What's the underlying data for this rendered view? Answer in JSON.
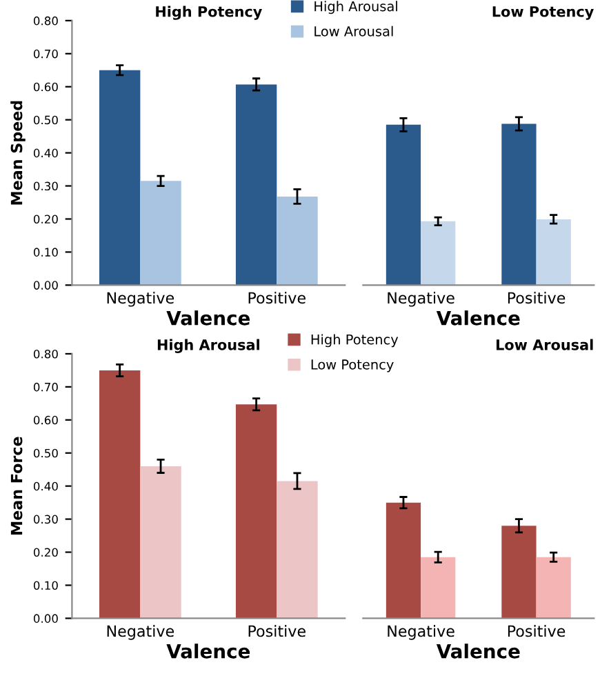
{
  "chart_data": [
    {
      "type": "bar",
      "title": "High Potency",
      "xlabel": "Valence",
      "ylabel": "Mean Speed",
      "categories": [
        "Negative",
        "Positive"
      ],
      "ylim": [
        0,
        0.8
      ],
      "yticks": [
        {
          "value": 0,
          "label": "0.00"
        },
        {
          "value": 0.1,
          "label": "0.10"
        },
        {
          "value": 0.2,
          "label": "0.20"
        },
        {
          "value": 0.3,
          "label": "0.30"
        },
        {
          "value": 0.4,
          "label": "0.40"
        },
        {
          "value": 0.5,
          "label": "0.50"
        },
        {
          "value": 0.6,
          "label": "0.60"
        },
        {
          "value": 0.7,
          "label": "0.70"
        },
        {
          "value": 0.8,
          "label": "0.80"
        }
      ],
      "legend": "top right",
      "grid": false,
      "series": [
        {
          "name": "High Arousal",
          "color": "#2a5b8c",
          "values": [
            0.65,
            0.607
          ],
          "errors": [
            0.015,
            0.018
          ]
        },
        {
          "name": "Low Arousal",
          "color": "#a8c4e0",
          "values": [
            0.315,
            0.268
          ],
          "errors": [
            0.015,
            0.022
          ]
        }
      ]
    },
    {
      "type": "bar",
      "title": "Low Potency",
      "xlabel": "Valence",
      "categories": [
        "Negative",
        "Positive"
      ],
      "ylim": [
        0,
        0.8
      ],
      "tick_labels": "x",
      "grid": false,
      "series": [
        {
          "color": "#2a5b8c",
          "values": [
            0.485,
            0.488
          ],
          "errors": [
            0.02,
            0.02
          ]
        },
        {
          "color": "#c5d7ea",
          "values": [
            0.193,
            0.199
          ],
          "errors": [
            0.012,
            0.013
          ]
        }
      ]
    },
    {
      "type": "bar",
      "title": "High Arousal",
      "xlabel": "Valence",
      "ylabel": "Mean Force",
      "categories": [
        "Negative",
        "Positive"
      ],
      "ylim": [
        0,
        0.8
      ],
      "yticks": [
        {
          "value": 0,
          "label": "0.00"
        },
        {
          "value": 0.1,
          "label": "0.10"
        },
        {
          "value": 0.2,
          "label": "0.20"
        },
        {
          "value": 0.3,
          "label": "0.30"
        },
        {
          "value": 0.4,
          "label": "0.40"
        },
        {
          "value": 0.5,
          "label": "0.50"
        },
        {
          "value": 0.6,
          "label": "0.60"
        },
        {
          "value": 0.7,
          "label": "0.70"
        },
        {
          "value": 0.8,
          "label": "0.80"
        }
      ],
      "legend": "top right",
      "grid": false,
      "series": [
        {
          "name": "High Potency",
          "color": "#a84a44",
          "values": [
            0.75,
            0.647
          ],
          "errors": [
            0.018,
            0.018
          ]
        },
        {
          "name": "Low Potency",
          "color": "#ecc6c6",
          "values": [
            0.46,
            0.415
          ],
          "errors": [
            0.02,
            0.024
          ]
        }
      ]
    },
    {
      "type": "bar",
      "title": "Low Arousal",
      "xlabel": "Valence",
      "categories": [
        "Negative",
        "Positive"
      ],
      "ylim": [
        0,
        0.8
      ],
      "tick_labels": "x",
      "grid": false,
      "series": [
        {
          "color": "#a84a44",
          "values": [
            0.35,
            0.28
          ],
          "errors": [
            0.017,
            0.02
          ]
        },
        {
          "color": "#f4b4b4",
          "values": [
            0.185,
            0.185
          ],
          "errors": [
            0.016,
            0.014
          ]
        }
      ]
    }
  ]
}
